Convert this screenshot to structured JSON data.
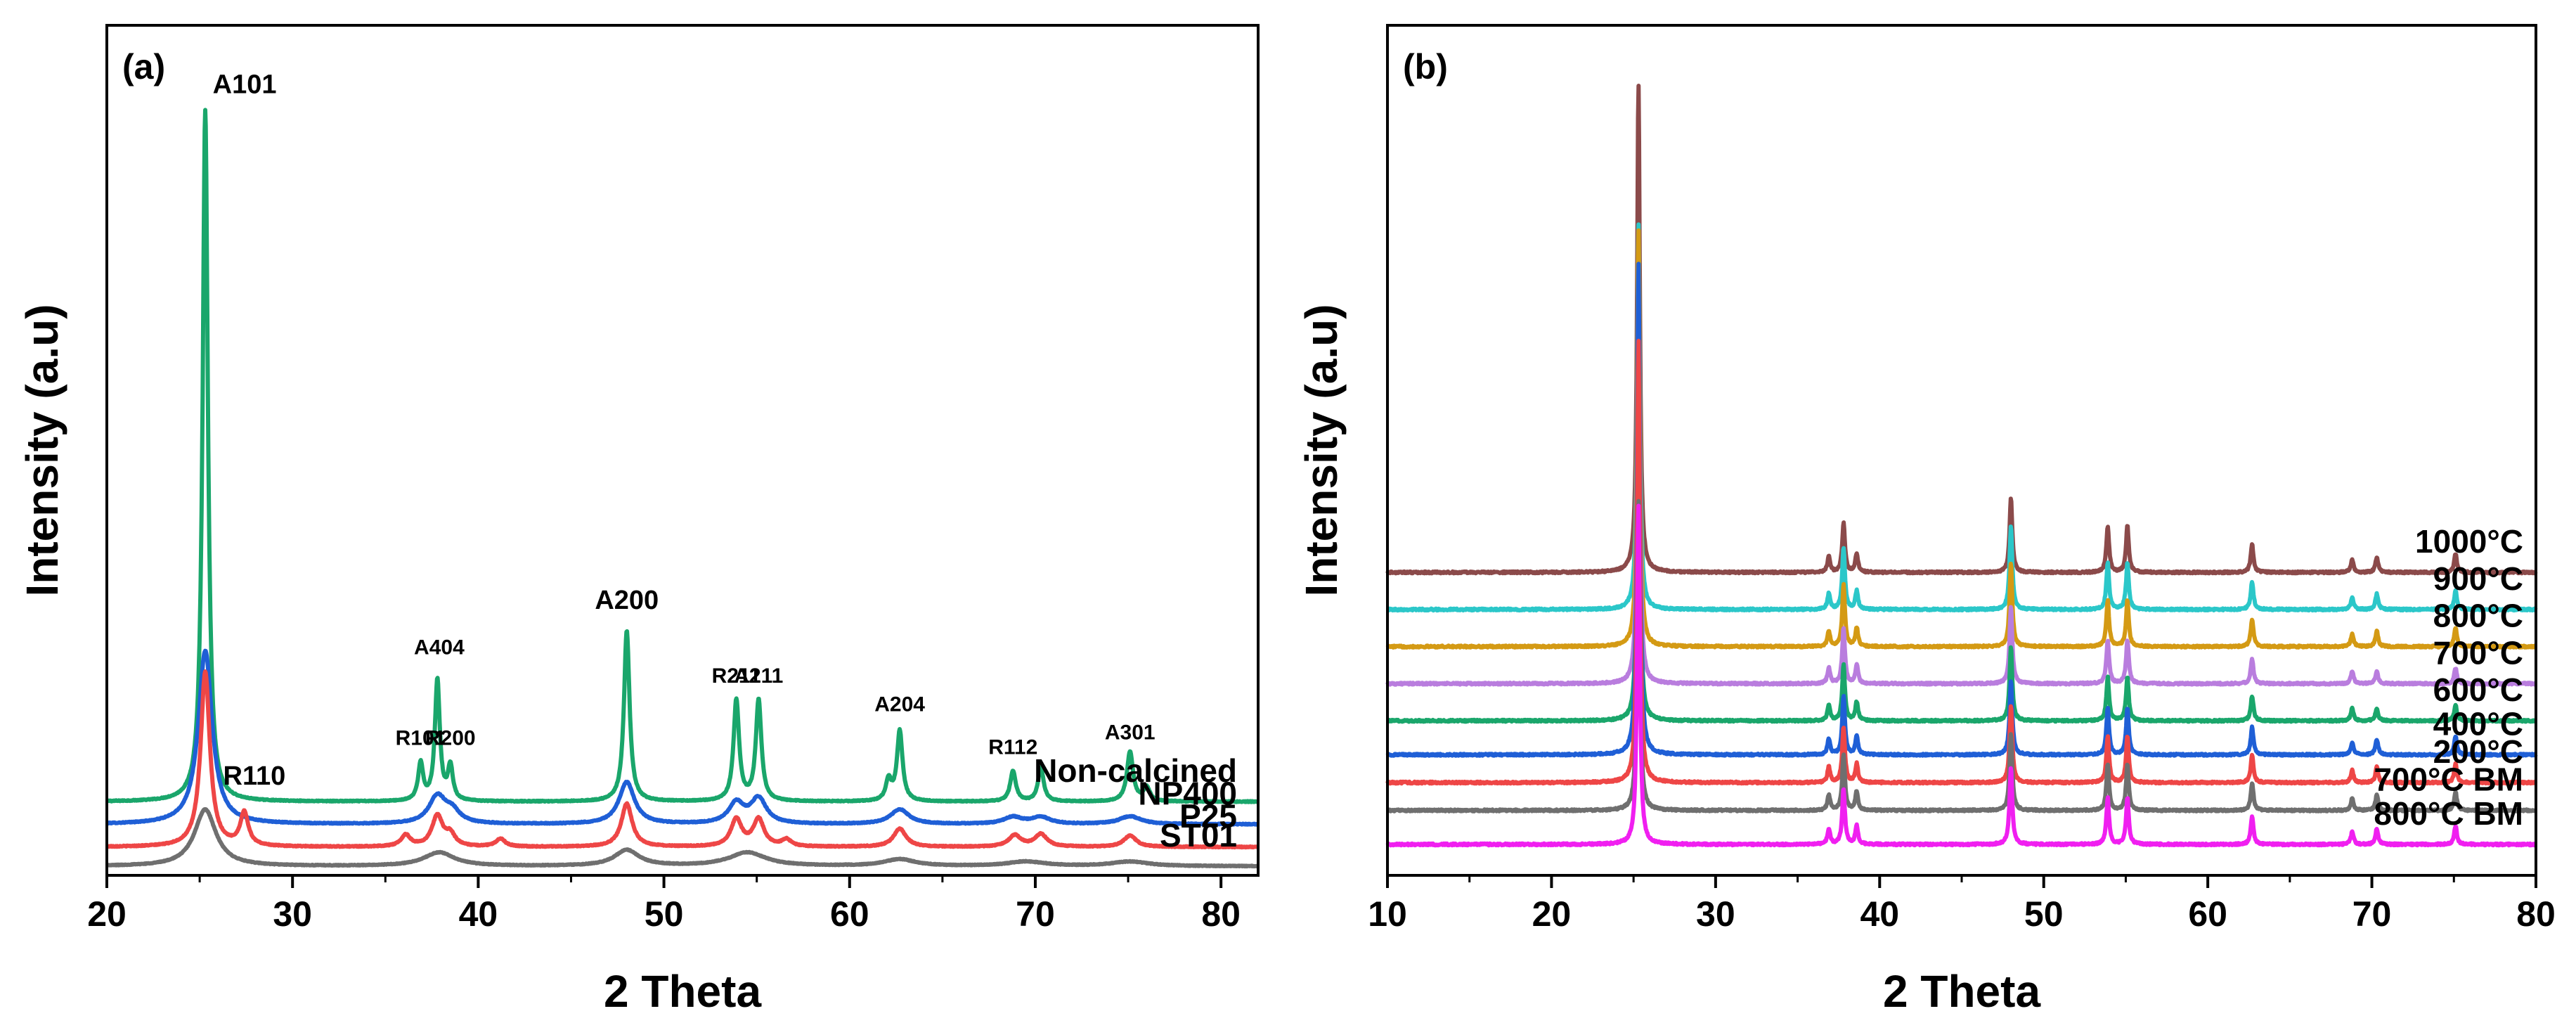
{
  "chart_data": [
    {
      "type": "line",
      "panel_label": "(a)",
      "xlabel": "2 Theta",
      "ylabel": "Intensity (a.u)",
      "xlim": [
        20,
        82
      ],
      "xticks": [
        20,
        30,
        40,
        50,
        60,
        70,
        80
      ],
      "y_ticks_shown": false,
      "grid": false,
      "style": "stacked XRD diffraction patterns",
      "series": [
        {
          "name": "Non-calcined",
          "color": "#1aa66b",
          "baseline": 0.65,
          "noise": 0.004,
          "width_scale": 1,
          "peaks": [
            {
              "x": 25.3,
              "h": 6.1,
              "w": 0.17
            },
            {
              "x": 36.9,
              "h": 0.33,
              "w": 0.16
            },
            {
              "x": 37.8,
              "h": 1.07,
              "w": 0.16
            },
            {
              "x": 38.5,
              "h": 0.3,
              "w": 0.16
            },
            {
              "x": 48.0,
              "h": 1.51,
              "w": 0.18
            },
            {
              "x": 53.9,
              "h": 0.89,
              "w": 0.18
            },
            {
              "x": 55.1,
              "h": 0.89,
              "w": 0.18
            },
            {
              "x": 62.1,
              "h": 0.18,
              "w": 0.18
            },
            {
              "x": 62.7,
              "h": 0.62,
              "w": 0.18
            },
            {
              "x": 68.8,
              "h": 0.27,
              "w": 0.18
            },
            {
              "x": 70.3,
              "h": 0.3,
              "w": 0.18
            },
            {
              "x": 75.1,
              "h": 0.44,
              "w": 0.2
            },
            {
              "x": 76.0,
              "h": 0.12,
              "w": 0.2
            }
          ]
        },
        {
          "name": "NP400",
          "color": "#1f5fd6",
          "baseline": 0.45,
          "noise": 0.004,
          "width_scale": 1,
          "peaks": [
            {
              "x": 25.3,
              "h": 1.53,
              "w": 0.45
            },
            {
              "x": 37.8,
              "h": 0.24,
              "w": 0.55
            },
            {
              "x": 38.6,
              "h": 0.1,
              "w": 0.5
            },
            {
              "x": 48.0,
              "h": 0.37,
              "w": 0.5
            },
            {
              "x": 53.9,
              "h": 0.18,
              "w": 0.5
            },
            {
              "x": 55.1,
              "h": 0.22,
              "w": 0.5
            },
            {
              "x": 62.7,
              "h": 0.13,
              "w": 0.6
            },
            {
              "x": 68.8,
              "h": 0.06,
              "w": 0.6
            },
            {
              "x": 70.3,
              "h": 0.06,
              "w": 0.6
            },
            {
              "x": 75.1,
              "h": 0.07,
              "w": 0.7
            }
          ]
        },
        {
          "name": "P25",
          "color": "#ee4646",
          "baseline": 0.25,
          "noise": 0.004,
          "width_scale": 1,
          "peaks": [
            {
              "x": 25.3,
              "h": 1.54,
              "w": 0.3
            },
            {
              "x": 27.4,
              "h": 0.29,
              "w": 0.26
            },
            {
              "x": 36.1,
              "h": 0.1,
              "w": 0.3
            },
            {
              "x": 37.8,
              "h": 0.27,
              "w": 0.35
            },
            {
              "x": 38.5,
              "h": 0.1,
              "w": 0.3
            },
            {
              "x": 41.2,
              "h": 0.07,
              "w": 0.3
            },
            {
              "x": 48.0,
              "h": 0.38,
              "w": 0.35
            },
            {
              "x": 53.9,
              "h": 0.24,
              "w": 0.35
            },
            {
              "x": 55.1,
              "h": 0.24,
              "w": 0.35
            },
            {
              "x": 56.6,
              "h": 0.06,
              "w": 0.3
            },
            {
              "x": 62.7,
              "h": 0.16,
              "w": 0.4
            },
            {
              "x": 68.9,
              "h": 0.1,
              "w": 0.4
            },
            {
              "x": 70.3,
              "h": 0.11,
              "w": 0.4
            },
            {
              "x": 75.1,
              "h": 0.1,
              "w": 0.4
            }
          ]
        },
        {
          "name": "ST01",
          "color": "#6f6f6f",
          "baseline": 0.08,
          "noise": 0.003,
          "width_scale": 1,
          "peaks": [
            {
              "x": 25.3,
              "h": 0.5,
              "w": 0.7
            },
            {
              "x": 37.9,
              "h": 0.12,
              "w": 1.0
            },
            {
              "x": 48.0,
              "h": 0.14,
              "w": 0.8
            },
            {
              "x": 54.5,
              "h": 0.12,
              "w": 1.2
            },
            {
              "x": 62.7,
              "h": 0.06,
              "w": 1.0
            },
            {
              "x": 69.5,
              "h": 0.04,
              "w": 1.2
            },
            {
              "x": 75.1,
              "h": 0.04,
              "w": 1.2
            }
          ]
        }
      ],
      "annotations": [
        {
          "text": "A101",
          "x": 25.4,
          "y": 6.9,
          "size": "large"
        },
        {
          "text": "A404",
          "x": 37.9,
          "y": 1.95,
          "size": "small"
        },
        {
          "text": "R101",
          "x": 36.9,
          "y": 1.15,
          "size": "small"
        },
        {
          "text": "R200",
          "x": 38.5,
          "y": 1.15,
          "size": "small"
        },
        {
          "text": "A200",
          "x": 48.0,
          "y": 2.35,
          "size": "large"
        },
        {
          "text": "R211",
          "x": 53.9,
          "y": 1.7,
          "size": "small"
        },
        {
          "text": "A211",
          "x": 55.1,
          "y": 1.7,
          "size": "small"
        },
        {
          "text": "A204",
          "x": 62.7,
          "y": 1.45,
          "size": "small"
        },
        {
          "text": "R112",
          "x": 68.8,
          "y": 1.07,
          "size": "small"
        },
        {
          "text": "A301",
          "x": 75.1,
          "y": 1.2,
          "size": "small"
        },
        {
          "text": "R110",
          "x": 27.4,
          "y": 0.8,
          "size": "large"
        }
      ]
    },
    {
      "type": "line",
      "panel_label": "(b)",
      "xlabel": "2 Theta",
      "ylabel": "Intensity (a.u)",
      "xlim": [
        10,
        80
      ],
      "xticks": [
        10,
        20,
        30,
        40,
        50,
        60,
        70,
        80
      ],
      "y_ticks_shown": false,
      "grid": false,
      "style": "stacked XRD diffraction patterns",
      "series": [
        {
          "name": "1000°C",
          "color": "#8b4a4a",
          "baseline": 0.98,
          "noise": 0.003,
          "width_scale": 1,
          "peaks": [
            {
              "x": 25.3,
              "h": 1.58,
              "w": 0.1
            },
            {
              "x": 36.9,
              "h": 0.05,
              "w": 0.1
            },
            {
              "x": 37.8,
              "h": 0.16,
              "w": 0.1
            },
            {
              "x": 38.6,
              "h": 0.06,
              "w": 0.1
            },
            {
              "x": 48.0,
              "h": 0.24,
              "w": 0.1
            },
            {
              "x": 53.9,
              "h": 0.15,
              "w": 0.1
            },
            {
              "x": 55.1,
              "h": 0.15,
              "w": 0.1
            },
            {
              "x": 62.7,
              "h": 0.09,
              "w": 0.1
            },
            {
              "x": 68.8,
              "h": 0.04,
              "w": 0.1
            },
            {
              "x": 70.3,
              "h": 0.05,
              "w": 0.1
            },
            {
              "x": 75.1,
              "h": 0.06,
              "w": 0.1
            }
          ]
        },
        {
          "name": "900°C",
          "color": "#2bc7c9",
          "baseline": 0.86,
          "noise": 0.003,
          "width_scale": 1,
          "peaks": [
            {
              "x": 25.3,
              "h": 1.25,
              "w": 0.1
            },
            {
              "x": 36.9,
              "h": 0.05,
              "w": 0.1
            },
            {
              "x": 37.8,
              "h": 0.2,
              "w": 0.1
            },
            {
              "x": 38.6,
              "h": 0.06,
              "w": 0.1
            },
            {
              "x": 48.0,
              "h": 0.27,
              "w": 0.1
            },
            {
              "x": 53.9,
              "h": 0.15,
              "w": 0.1
            },
            {
              "x": 55.1,
              "h": 0.15,
              "w": 0.1
            },
            {
              "x": 62.7,
              "h": 0.09,
              "w": 0.1
            },
            {
              "x": 68.8,
              "h": 0.04,
              "w": 0.1
            },
            {
              "x": 70.3,
              "h": 0.05,
              "w": 0.1
            },
            {
              "x": 75.1,
              "h": 0.06,
              "w": 0.1
            }
          ]
        },
        {
          "name": "800°C",
          "color": "#d49a14",
          "baseline": 0.74,
          "noise": 0.003,
          "width_scale": 1,
          "peaks": [
            {
              "x": 25.3,
              "h": 1.35,
              "w": 0.1
            },
            {
              "x": 36.9,
              "h": 0.05,
              "w": 0.1
            },
            {
              "x": 37.8,
              "h": 0.2,
              "w": 0.1
            },
            {
              "x": 38.6,
              "h": 0.06,
              "w": 0.1
            },
            {
              "x": 48.0,
              "h": 0.27,
              "w": 0.1
            },
            {
              "x": 53.9,
              "h": 0.15,
              "w": 0.1
            },
            {
              "x": 55.1,
              "h": 0.15,
              "w": 0.1
            },
            {
              "x": 62.7,
              "h": 0.09,
              "w": 0.1
            },
            {
              "x": 68.8,
              "h": 0.04,
              "w": 0.1
            },
            {
              "x": 70.3,
              "h": 0.05,
              "w": 0.1
            },
            {
              "x": 75.1,
              "h": 0.06,
              "w": 0.1
            }
          ]
        },
        {
          "name": "700°C",
          "color": "#b97dde",
          "baseline": 0.62,
          "noise": 0.003,
          "width_scale": 1,
          "peaks": [
            {
              "x": 25.3,
              "h": 1.3,
              "w": 0.1
            },
            {
              "x": 36.9,
              "h": 0.05,
              "w": 0.1
            },
            {
              "x": 37.8,
              "h": 0.18,
              "w": 0.1
            },
            {
              "x": 38.6,
              "h": 0.06,
              "w": 0.1
            },
            {
              "x": 48.0,
              "h": 0.25,
              "w": 0.1
            },
            {
              "x": 53.9,
              "h": 0.14,
              "w": 0.1
            },
            {
              "x": 55.1,
              "h": 0.14,
              "w": 0.1
            },
            {
              "x": 62.7,
              "h": 0.08,
              "w": 0.1
            },
            {
              "x": 68.8,
              "h": 0.04,
              "w": 0.1
            },
            {
              "x": 70.3,
              "h": 0.04,
              "w": 0.1
            },
            {
              "x": 75.1,
              "h": 0.05,
              "w": 0.1
            }
          ]
        },
        {
          "name": "600°C",
          "color": "#1aa66b",
          "baseline": 0.5,
          "noise": 0.003,
          "width_scale": 1,
          "peaks": [
            {
              "x": 25.3,
              "h": 1.25,
              "w": 0.1
            },
            {
              "x": 36.9,
              "h": 0.05,
              "w": 0.1
            },
            {
              "x": 37.8,
              "h": 0.18,
              "w": 0.1
            },
            {
              "x": 38.6,
              "h": 0.06,
              "w": 0.1
            },
            {
              "x": 48.0,
              "h": 0.24,
              "w": 0.1
            },
            {
              "x": 53.9,
              "h": 0.14,
              "w": 0.1
            },
            {
              "x": 55.1,
              "h": 0.14,
              "w": 0.1
            },
            {
              "x": 62.7,
              "h": 0.08,
              "w": 0.1
            },
            {
              "x": 68.8,
              "h": 0.04,
              "w": 0.1
            },
            {
              "x": 70.3,
              "h": 0.04,
              "w": 0.1
            },
            {
              "x": 75.1,
              "h": 0.05,
              "w": 0.1
            }
          ]
        },
        {
          "name": "400°C",
          "color": "#1f5fd6",
          "baseline": 0.39,
          "noise": 0.003,
          "width_scale": 1,
          "peaks": [
            {
              "x": 25.3,
              "h": 1.59,
              "w": 0.1
            },
            {
              "x": 36.9,
              "h": 0.05,
              "w": 0.1
            },
            {
              "x": 37.8,
              "h": 0.19,
              "w": 0.1
            },
            {
              "x": 38.6,
              "h": 0.06,
              "w": 0.1
            },
            {
              "x": 48.0,
              "h": 0.24,
              "w": 0.1
            },
            {
              "x": 53.9,
              "h": 0.15,
              "w": 0.1
            },
            {
              "x": 55.1,
              "h": 0.15,
              "w": 0.1
            },
            {
              "x": 62.7,
              "h": 0.09,
              "w": 0.1
            },
            {
              "x": 68.8,
              "h": 0.04,
              "w": 0.1
            },
            {
              "x": 70.3,
              "h": 0.05,
              "w": 0.1
            },
            {
              "x": 75.1,
              "h": 0.06,
              "w": 0.1
            }
          ]
        },
        {
          "name": "200°C",
          "color": "#ee4646",
          "baseline": 0.3,
          "noise": 0.003,
          "width_scale": 1,
          "peaks": [
            {
              "x": 25.3,
              "h": 1.43,
              "w": 0.1
            },
            {
              "x": 36.9,
              "h": 0.05,
              "w": 0.1
            },
            {
              "x": 37.8,
              "h": 0.18,
              "w": 0.1
            },
            {
              "x": 38.6,
              "h": 0.06,
              "w": 0.1
            },
            {
              "x": 48.0,
              "h": 0.25,
              "w": 0.1
            },
            {
              "x": 53.9,
              "h": 0.15,
              "w": 0.1
            },
            {
              "x": 55.1,
              "h": 0.15,
              "w": 0.1
            },
            {
              "x": 62.7,
              "h": 0.09,
              "w": 0.1
            },
            {
              "x": 68.8,
              "h": 0.04,
              "w": 0.1
            },
            {
              "x": 70.3,
              "h": 0.05,
              "w": 0.1
            },
            {
              "x": 75.1,
              "h": 0.06,
              "w": 0.1
            }
          ]
        },
        {
          "name": "700°C BM",
          "color": "#6f6f6f",
          "baseline": 0.21,
          "noise": 0.003,
          "width_scale": 1,
          "peaks": [
            {
              "x": 25.3,
              "h": 1.0,
              "w": 0.1
            },
            {
              "x": 36.9,
              "h": 0.05,
              "w": 0.1
            },
            {
              "x": 37.8,
              "h": 0.18,
              "w": 0.1
            },
            {
              "x": 38.6,
              "h": 0.06,
              "w": 0.1
            },
            {
              "x": 48.0,
              "h": 0.25,
              "w": 0.1
            },
            {
              "x": 53.9,
              "h": 0.15,
              "w": 0.1
            },
            {
              "x": 55.1,
              "h": 0.15,
              "w": 0.1
            },
            {
              "x": 62.7,
              "h": 0.09,
              "w": 0.1
            },
            {
              "x": 68.8,
              "h": 0.04,
              "w": 0.1
            },
            {
              "x": 70.3,
              "h": 0.05,
              "w": 0.1
            },
            {
              "x": 75.1,
              "h": 0.06,
              "w": 0.1
            }
          ]
        },
        {
          "name": "800°C BM",
          "color": "#f01ff0",
          "baseline": 0.1,
          "noise": 0.003,
          "width_scale": 1,
          "peaks": [
            {
              "x": 25.3,
              "h": 1.1,
              "w": 0.1
            },
            {
              "x": 36.9,
              "h": 0.05,
              "w": 0.1
            },
            {
              "x": 37.8,
              "h": 0.18,
              "w": 0.1
            },
            {
              "x": 38.6,
              "h": 0.06,
              "w": 0.1
            },
            {
              "x": 48.0,
              "h": 0.25,
              "w": 0.1
            },
            {
              "x": 53.9,
              "h": 0.15,
              "w": 0.1
            },
            {
              "x": 55.1,
              "h": 0.15,
              "w": 0.1
            },
            {
              "x": 62.7,
              "h": 0.09,
              "w": 0.1
            },
            {
              "x": 68.8,
              "h": 0.04,
              "w": 0.1
            },
            {
              "x": 70.3,
              "h": 0.05,
              "w": 0.1
            },
            {
              "x": 75.1,
              "h": 0.06,
              "w": 0.1
            }
          ]
        }
      ],
      "annotations": []
    }
  ]
}
